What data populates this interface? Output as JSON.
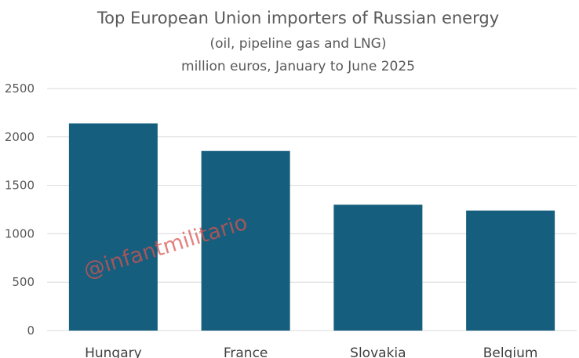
{
  "chart_data": {
    "type": "bar",
    "title": "Top European Union importers of Russian energy",
    "subtitle_lines": [
      "(oil, pipeline gas and LNG)",
      "million euros, January to June 2025"
    ],
    "categories": [
      "Hungary",
      "France",
      "Slovakia",
      "Belgium"
    ],
    "values": [
      2140,
      1855,
      1300,
      1240
    ],
    "ylim": [
      0,
      2500
    ],
    "yticks": [
      0,
      500,
      1000,
      1500,
      2000,
      2500
    ],
    "grid": true,
    "legend": "none",
    "bar_color": "#155e7d",
    "watermark": "@infantmilitario"
  }
}
